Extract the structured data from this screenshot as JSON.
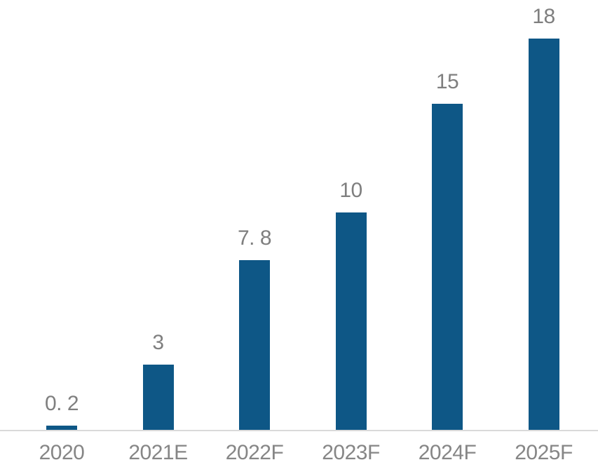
{
  "chart_data": {
    "type": "bar",
    "categories": [
      "2020",
      "2021E",
      "2022F",
      "2023F",
      "2024F",
      "2025F"
    ],
    "values": [
      0.2,
      3,
      7.8,
      10,
      15,
      18
    ],
    "value_labels": [
      "0. 2",
      "3",
      "7. 8",
      "10",
      "15",
      "18"
    ],
    "title": "",
    "xlabel": "",
    "ylabel": "",
    "ylim": [
      0,
      18
    ],
    "grid": false,
    "legend": "none",
    "colors": {
      "bar": "#0E5786",
      "value_label": "#7f7f7f",
      "axis_label": "#868686",
      "axis_line": "#d9d9d9",
      "background": "#ffffff"
    }
  }
}
